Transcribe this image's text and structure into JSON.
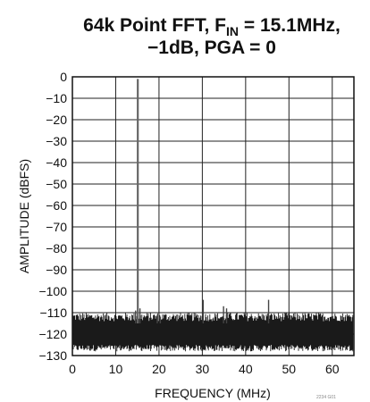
{
  "chart_data": {
    "type": "line",
    "title": "64k Point FFT, F",
    "title_sub": "IN",
    "title_rest": " = 15.1MHz,",
    "title_line2": "−1dB, PGA = 0",
    "xlabel": "FREQUENCY (MHz)",
    "ylabel": "AMPLITUDE (dBFS)",
    "xlim": [
      0,
      65
    ],
    "ylim": [
      -130,
      0
    ],
    "x_ticks": [
      "0",
      "10",
      "20",
      "30",
      "40",
      "50",
      "60"
    ],
    "y_ticks": [
      "0",
      "−10",
      "−20",
      "−30",
      "−40",
      "−50",
      "−60",
      "−70",
      "−80",
      "−90",
      "−100",
      "−110",
      "−120",
      "−130"
    ],
    "grid": true,
    "footnote": "2234 G01",
    "noise_floor_db": -117,
    "series": [
      {
        "color": "#333333",
        "spurs": [
          {
            "x": 15.1,
            "y": -1
          },
          {
            "x": 14.6,
            "y": -109
          },
          {
            "x": 15.6,
            "y": -108
          },
          {
            "x": 30.2,
            "y": -104
          },
          {
            "x": 34.9,
            "y": -107
          },
          {
            "x": 35.6,
            "y": -108
          },
          {
            "x": 45.3,
            "y": -104
          },
          {
            "x": 19.6,
            "y": -111
          },
          {
            "x": 20.3,
            "y": -112
          }
        ]
      }
    ]
  }
}
